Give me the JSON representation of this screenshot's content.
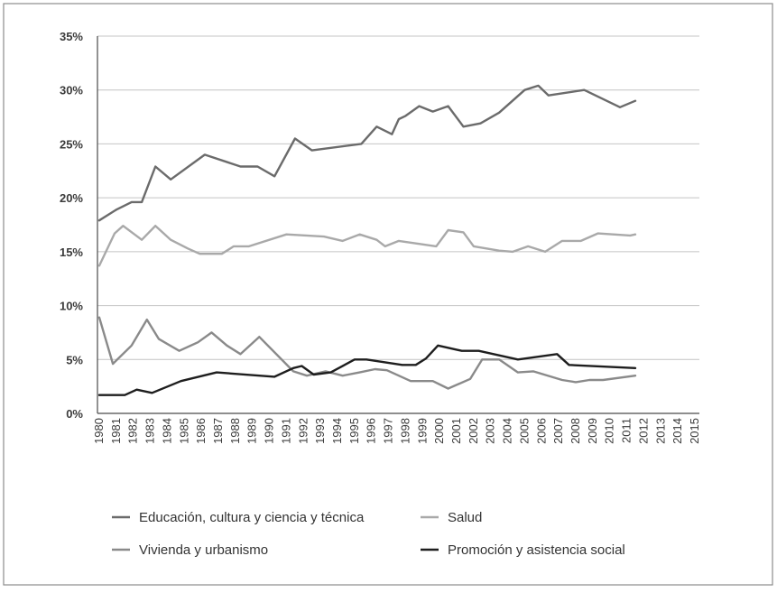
{
  "chart_data": {
    "type": "line",
    "title": "",
    "xlabel": "",
    "ylabel": "",
    "ylim": [
      0,
      35
    ],
    "y_tick_values": [
      0,
      5,
      10,
      15,
      20,
      25,
      30,
      35
    ],
    "y_tick_labels": [
      "0%",
      "5%",
      "10%",
      "15%",
      "20%",
      "25%",
      "30%",
      "35%"
    ],
    "grid": true,
    "legend_position": "bottom",
    "x": [
      "1980",
      "1981",
      "1982",
      "1983",
      "1984",
      "1985",
      "1986",
      "1987",
      "1988",
      "1989",
      "1990",
      "1991",
      "1992",
      "1993",
      "1994",
      "1995",
      "1996",
      "1997",
      "1998",
      "1999",
      "2000",
      "2001",
      "2002",
      "2003",
      "2004",
      "2005",
      "2006",
      "2007",
      "2008",
      "2009",
      "2010",
      "2011",
      "2012",
      "2013",
      "2014",
      "2015"
    ],
    "series": [
      {
        "name": "Educación, cultura y ciencia y técnica",
        "color": "#6b6b6b",
        "points": [
          [
            1980,
            17.9
          ],
          [
            1981,
            18.9
          ],
          [
            1981.9,
            19.6
          ],
          [
            1982.5,
            19.6
          ],
          [
            1983.3,
            22.9
          ],
          [
            1984.2,
            21.7
          ],
          [
            1986.2,
            24.0
          ],
          [
            1988.3,
            22.9
          ],
          [
            1989.3,
            22.9
          ],
          [
            1990.3,
            22.0
          ],
          [
            1991.5,
            25.5
          ],
          [
            1992.5,
            24.4
          ],
          [
            1995.4,
            25.0
          ],
          [
            1996.3,
            26.6
          ],
          [
            1997.2,
            25.9
          ],
          [
            1997.6,
            27.3
          ],
          [
            1998.0,
            27.6
          ],
          [
            1998.8,
            28.5
          ],
          [
            1999.6,
            28.0
          ],
          [
            2000.5,
            28.5
          ],
          [
            2001.4,
            26.6
          ],
          [
            2002.4,
            26.9
          ],
          [
            2003.5,
            27.9
          ],
          [
            2005.0,
            30.0
          ],
          [
            2005.8,
            30.4
          ],
          [
            2006.4,
            29.5
          ],
          [
            2008.5,
            30.0
          ],
          [
            2010.6,
            28.4
          ],
          [
            2011.5,
            29.0
          ]
        ]
      },
      {
        "name": "Salud",
        "color": "#a9a9a9",
        "points": [
          [
            1980,
            13.7
          ],
          [
            1980.9,
            16.7
          ],
          [
            1981.4,
            17.4
          ],
          [
            1982.5,
            16.1
          ],
          [
            1983.3,
            17.4
          ],
          [
            1984.2,
            16.1
          ],
          [
            1985.2,
            15.3
          ],
          [
            1985.9,
            14.8
          ],
          [
            1987.2,
            14.8
          ],
          [
            1987.9,
            15.5
          ],
          [
            1988.8,
            15.5
          ],
          [
            1991.0,
            16.6
          ],
          [
            1993.2,
            16.4
          ],
          [
            1994.3,
            16.0
          ],
          [
            1995.3,
            16.6
          ],
          [
            1996.3,
            16.1
          ],
          [
            1996.8,
            15.5
          ],
          [
            1997.6,
            16.0
          ],
          [
            1999.8,
            15.5
          ],
          [
            2000.5,
            17.0
          ],
          [
            2001.4,
            16.8
          ],
          [
            2002.0,
            15.5
          ],
          [
            2003.5,
            15.1
          ],
          [
            2004.3,
            15.0
          ],
          [
            2005.2,
            15.5
          ],
          [
            2006.2,
            15.0
          ],
          [
            2007.2,
            16.0
          ],
          [
            2008.3,
            16.0
          ],
          [
            2009.3,
            16.7
          ],
          [
            2011.2,
            16.5
          ],
          [
            2011.5,
            16.6
          ]
        ]
      },
      {
        "name": "Vivienda y urbanismo",
        "color": "#8a8a8a",
        "points": [
          [
            1980,
            8.9
          ],
          [
            1980.8,
            4.6
          ],
          [
            1981.9,
            6.3
          ],
          [
            1982.8,
            8.7
          ],
          [
            1983.5,
            6.9
          ],
          [
            1984.7,
            5.8
          ],
          [
            1985.8,
            6.6
          ],
          [
            1986.6,
            7.5
          ],
          [
            1987.5,
            6.3
          ],
          [
            1988.3,
            5.5
          ],
          [
            1989.4,
            7.1
          ],
          [
            1991.4,
            3.9
          ],
          [
            1992.2,
            3.5
          ],
          [
            1993.3,
            3.9
          ],
          [
            1994.3,
            3.5
          ],
          [
            1995.3,
            3.8
          ],
          [
            1996.2,
            4.1
          ],
          [
            1996.9,
            4.0
          ],
          [
            1998.3,
            3.0
          ],
          [
            1999.6,
            3.0
          ],
          [
            2000.5,
            2.3
          ],
          [
            2001.8,
            3.2
          ],
          [
            2002.5,
            5.0
          ],
          [
            2003.5,
            5.0
          ],
          [
            2004.6,
            3.8
          ],
          [
            2005.5,
            3.9
          ],
          [
            2007.2,
            3.1
          ],
          [
            2008.0,
            2.9
          ],
          [
            2008.8,
            3.1
          ],
          [
            2009.6,
            3.1
          ],
          [
            2011.5,
            3.5
          ]
        ]
      },
      {
        "name": "Promoción y asistencia social",
        "color": "#1e1e1e",
        "points": [
          [
            1980,
            1.7
          ],
          [
            1981.5,
            1.7
          ],
          [
            1982.2,
            2.2
          ],
          [
            1983.1,
            1.9
          ],
          [
            1984.8,
            3.0
          ],
          [
            1986.9,
            3.8
          ],
          [
            1990.3,
            3.4
          ],
          [
            1991.4,
            4.2
          ],
          [
            1991.9,
            4.4
          ],
          [
            1992.6,
            3.6
          ],
          [
            1993.6,
            3.8
          ],
          [
            1995.0,
            5.0
          ],
          [
            1995.7,
            5.0
          ],
          [
            1997.8,
            4.5
          ],
          [
            1998.6,
            4.5
          ],
          [
            1999.2,
            5.1
          ],
          [
            1999.9,
            6.3
          ],
          [
            2001.3,
            5.8
          ],
          [
            2002.3,
            5.8
          ],
          [
            2004.6,
            5.0
          ],
          [
            2006.9,
            5.5
          ],
          [
            2007.6,
            4.5
          ],
          [
            2011.5,
            4.2
          ]
        ]
      }
    ]
  }
}
